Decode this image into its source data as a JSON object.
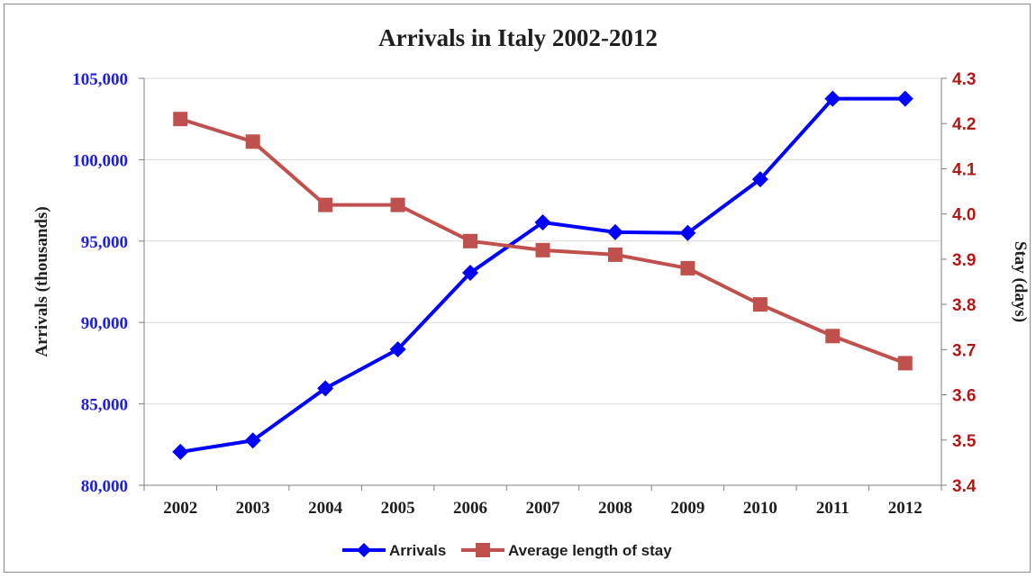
{
  "chart_data": {
    "type": "line",
    "title": "Arrivals  in Italy 2002-2012",
    "categories": [
      "2002",
      "2003",
      "2004",
      "2005",
      "2006",
      "2007",
      "2008",
      "2009",
      "2010",
      "2011",
      "2012"
    ],
    "y_left": {
      "label": "Arrivals (thousands)",
      "range": [
        80000,
        105000
      ],
      "ticks": [
        "80,000",
        "85,000",
        "90,000",
        "95,000",
        "100,000",
        "105,000"
      ],
      "tick_values": [
        80000,
        85000,
        90000,
        95000,
        100000,
        105000
      ],
      "color": "#1f1fe0"
    },
    "y_right": {
      "label": "Stay (days)",
      "range": [
        3.4,
        4.3
      ],
      "ticks": [
        "3.4",
        "3.5",
        "3.6",
        "3.7",
        "3.8",
        "3.9",
        "4.0",
        "4.1",
        "4.2",
        "4.3"
      ],
      "tick_values": [
        3.4,
        3.5,
        3.6,
        3.7,
        3.8,
        3.9,
        4.0,
        4.1,
        4.2,
        4.3
      ],
      "color": "#b01818"
    },
    "series": [
      {
        "name": "Arrivals",
        "axis": "left",
        "marker": "diamond",
        "color": "#0000ff",
        "values": [
          82050,
          82750,
          85950,
          88350,
          93050,
          96150,
          95550,
          95500,
          98800,
          103750,
          103750
        ]
      },
      {
        "name": "Average length of stay",
        "axis": "right",
        "marker": "square",
        "color": "#c0504d",
        "values": [
          4.21,
          4.16,
          4.02,
          4.02,
          3.94,
          3.92,
          3.91,
          3.88,
          3.8,
          3.73,
          3.67
        ]
      }
    ],
    "grid": true,
    "legend": "bottom"
  }
}
